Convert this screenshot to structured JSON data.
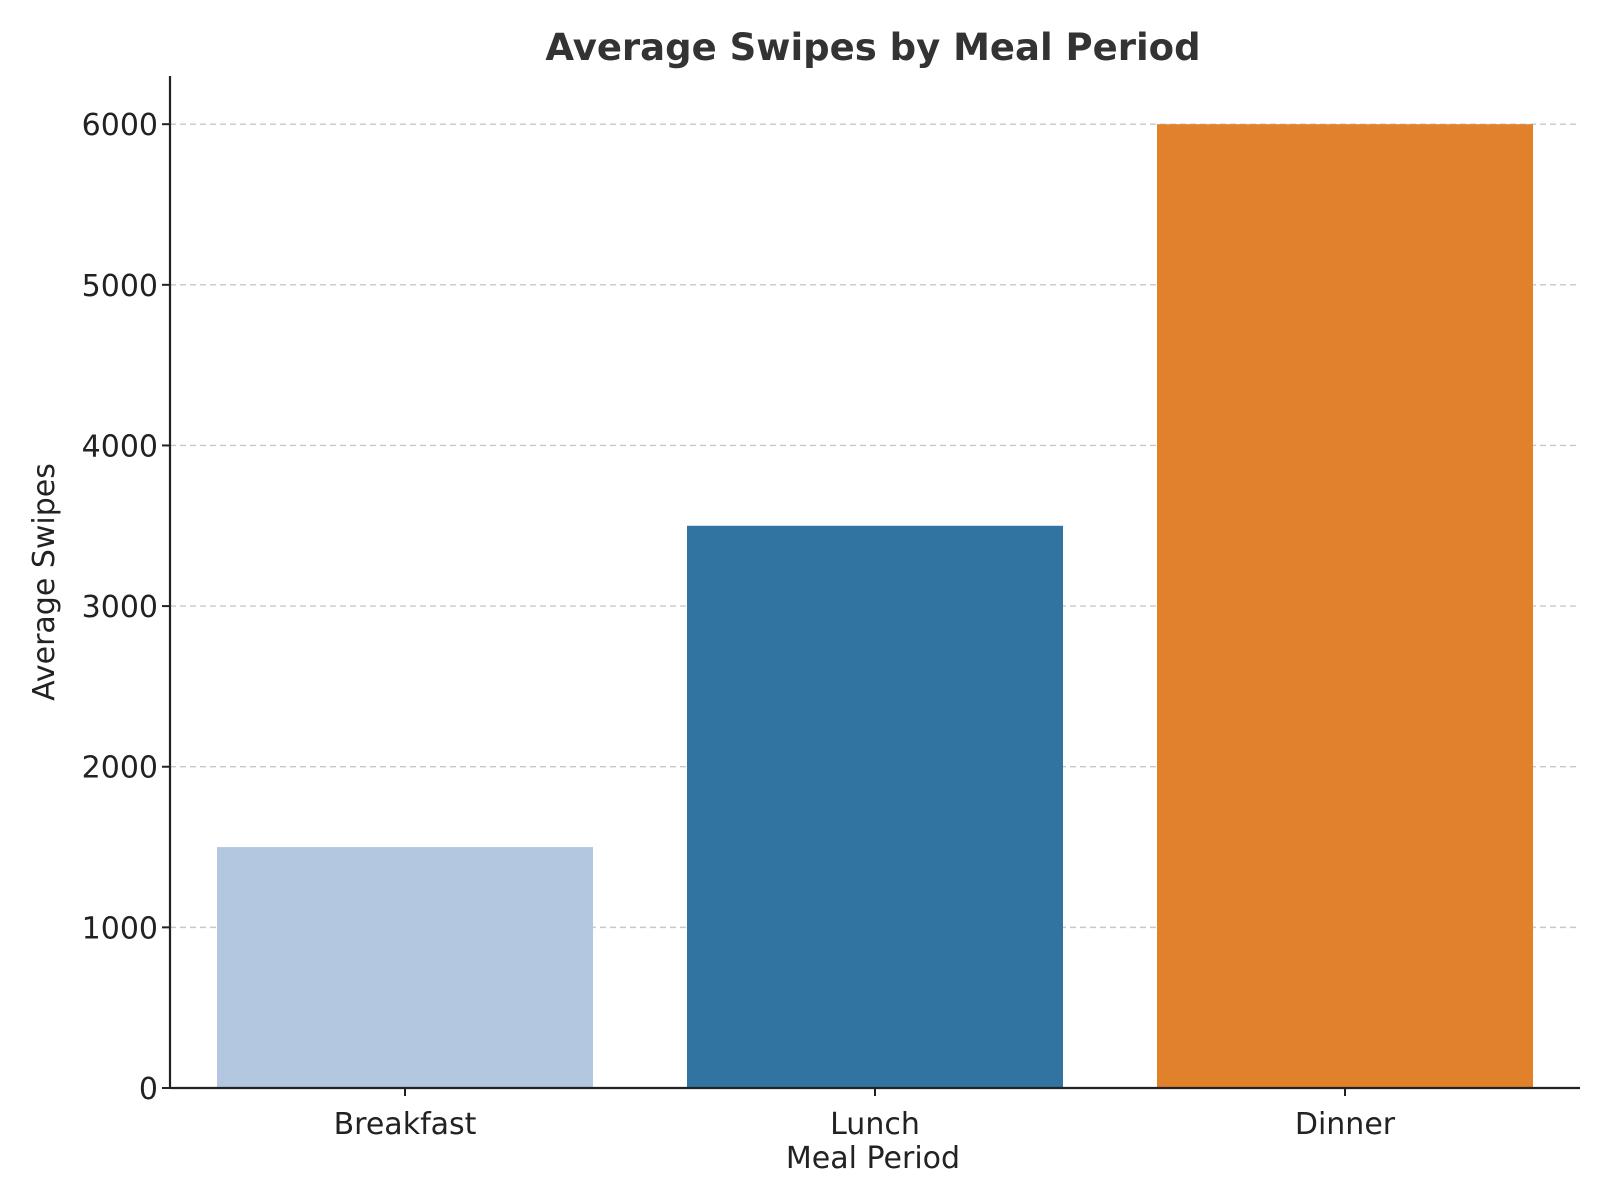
{
  "chart_data": {
    "type": "bar",
    "title": "Average Swipes by Meal Period",
    "xlabel": "Meal Period",
    "ylabel": "Average Swipes",
    "categories": [
      "Breakfast",
      "Lunch",
      "Dinner"
    ],
    "values": [
      1500,
      3500,
      6000
    ],
    "bar_colors": [
      "#b3c7e0",
      "#3274a1",
      "#e1812c"
    ],
    "ylim": [
      0,
      6300
    ],
    "yticks": [
      0,
      1000,
      2000,
      3000,
      4000,
      5000,
      6000
    ],
    "grid": true,
    "legend": "none"
  }
}
